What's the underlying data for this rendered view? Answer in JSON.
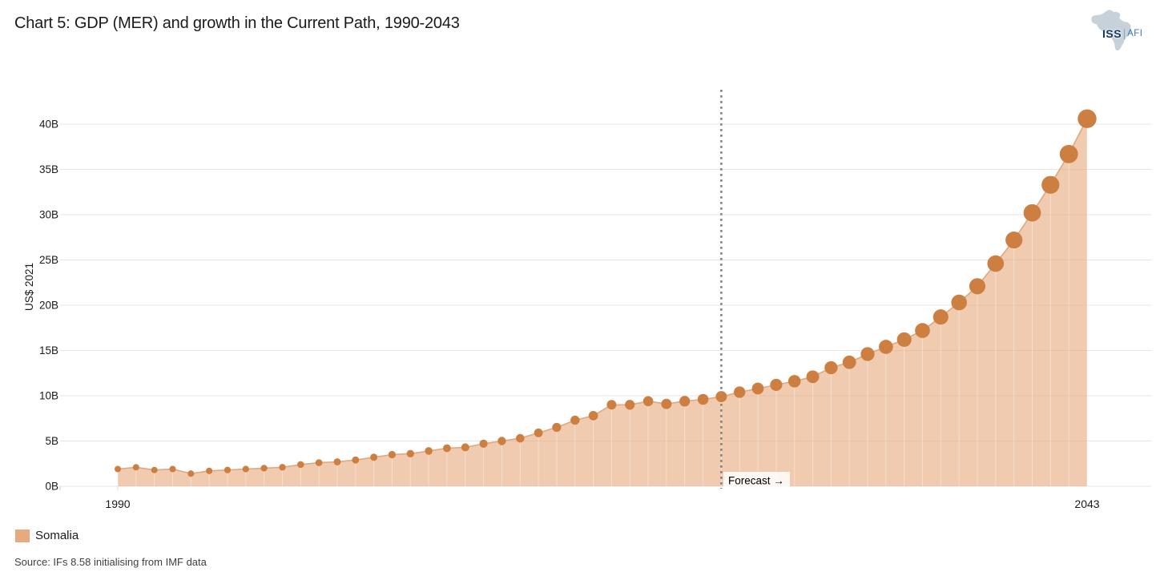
{
  "title": "Chart 5: GDP (MER) and growth in the Current Path, 1990-2043",
  "logo": {
    "iss": "ISS",
    "afi": "AFI"
  },
  "chart_data": {
    "type": "area",
    "title": "Chart 5: GDP (MER) and growth in the Current Path, 1990-2043",
    "xlabel": "",
    "ylabel": "US$ 2021",
    "xlim": [
      1990,
      2043
    ],
    "ylim": [
      0,
      42
    ],
    "grid": "horizontal",
    "x_ticks": [
      "1990",
      "2043"
    ],
    "y_ticks": [
      "0B",
      "5B",
      "10B",
      "15B",
      "20B",
      "25B",
      "30B",
      "35B",
      "40B"
    ],
    "y_tick_values": [
      0,
      5,
      10,
      15,
      20,
      25,
      30,
      35,
      40
    ],
    "forecast_start_year": 2023,
    "forecast_label": "Forecast →",
    "legend_position": "bottom-left",
    "series": [
      {
        "name": "Somalia",
        "x": [
          1990,
          1991,
          1992,
          1993,
          1994,
          1995,
          1996,
          1997,
          1998,
          1999,
          2000,
          2001,
          2002,
          2003,
          2004,
          2005,
          2006,
          2007,
          2008,
          2009,
          2010,
          2011,
          2012,
          2013,
          2014,
          2015,
          2016,
          2017,
          2018,
          2019,
          2020,
          2021,
          2022,
          2023,
          2024,
          2025,
          2026,
          2027,
          2028,
          2029,
          2030,
          2031,
          2032,
          2033,
          2034,
          2035,
          2036,
          2037,
          2038,
          2039,
          2040,
          2041,
          2042,
          2043
        ],
        "values": [
          1.9,
          2.1,
          1.8,
          1.9,
          1.4,
          1.7,
          1.8,
          1.9,
          2.0,
          2.1,
          2.4,
          2.6,
          2.7,
          2.9,
          3.2,
          3.5,
          3.6,
          3.9,
          4.2,
          4.3,
          4.7,
          5.0,
          5.3,
          5.9,
          6.5,
          7.3,
          7.8,
          9.0,
          9.0,
          9.4,
          9.1,
          9.4,
          9.6,
          9.9,
          10.4,
          10.8,
          11.2,
          11.6,
          12.1,
          13.1,
          13.7,
          14.6,
          15.4,
          16.2,
          17.2,
          18.7,
          20.3,
          22.1,
          24.6,
          27.2,
          30.2,
          33.3,
          36.7,
          40.6
        ]
      }
    ],
    "colors": {
      "dot": "#cd7f41",
      "line": "#dfa87e",
      "area": "#e8a97c",
      "gridline": "#e4e4e4",
      "forecast_line": "#808080"
    }
  },
  "legend": {
    "items": [
      {
        "label": "Somalia",
        "color": "#e8a97c"
      }
    ]
  },
  "source": "Source: IFs 8.58 initialising from IMF data"
}
